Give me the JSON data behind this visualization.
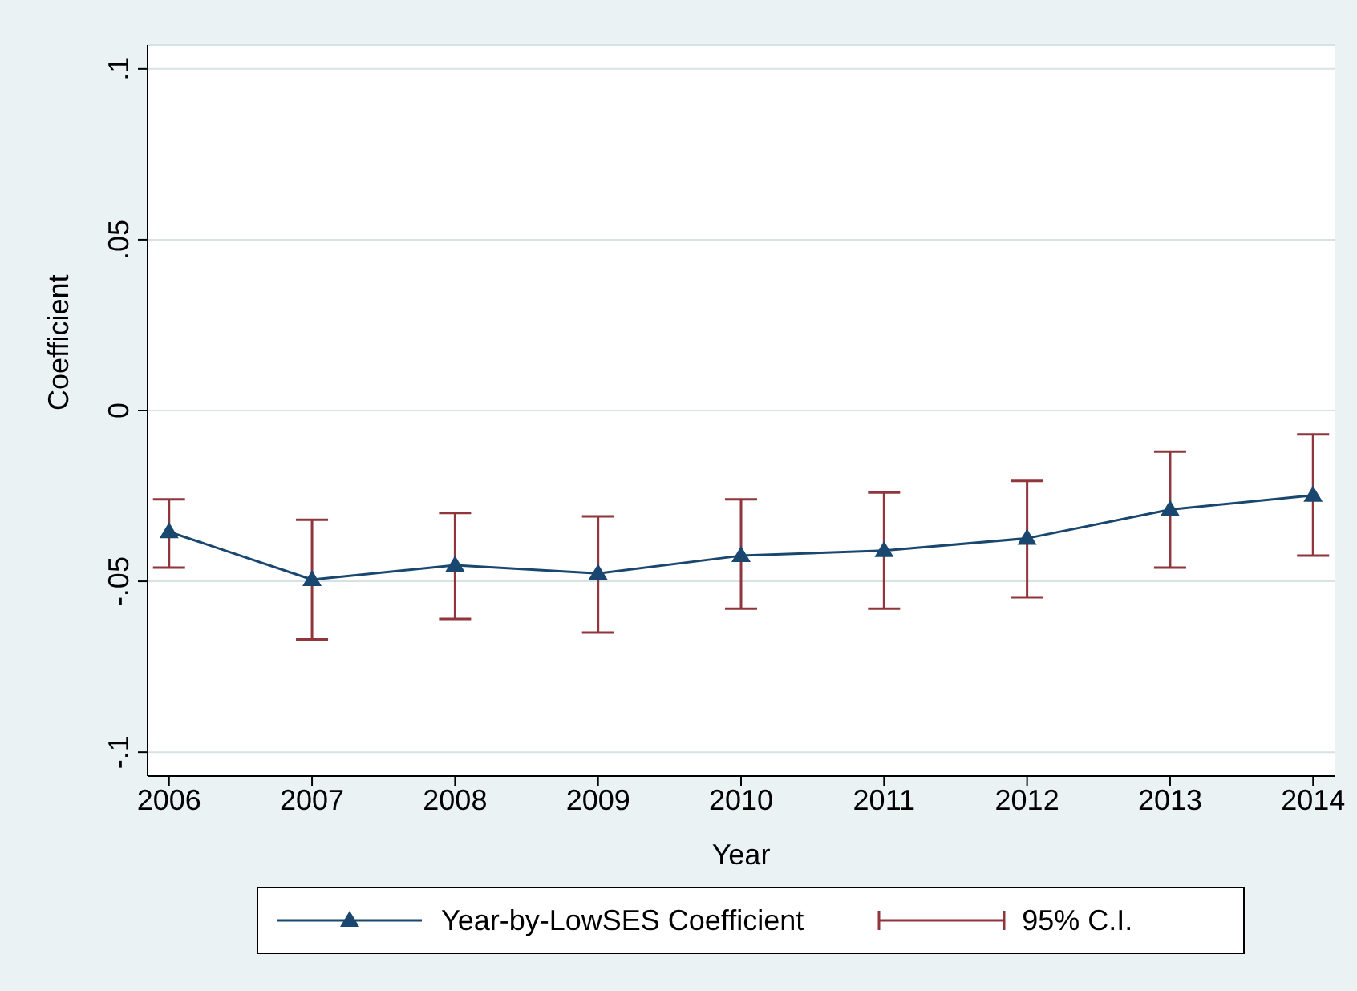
{
  "chart_data": {
    "type": "line",
    "xlabel": "Year",
    "ylabel": "Coefficient",
    "x": [
      2006,
      2007,
      2008,
      2009,
      2010,
      2011,
      2012,
      2013,
      2014
    ],
    "series": [
      {
        "name": "Year-by-LowSES Coefficient",
        "color": "#1a476f",
        "values": [
          -0.0355,
          -0.0495,
          -0.0453,
          -0.0477,
          -0.0425,
          -0.041,
          -0.0374,
          -0.029,
          -0.0248
        ],
        "errors": [
          [
            -0.046,
            -0.026
          ],
          [
            -0.067,
            -0.032
          ],
          [
            -0.061,
            -0.03
          ],
          [
            -0.065,
            -0.031
          ],
          [
            -0.058,
            -0.026
          ],
          [
            -0.058,
            -0.024
          ],
          [
            -0.0547,
            -0.0206
          ],
          [
            -0.046,
            -0.012
          ],
          [
            -0.0425,
            -0.007
          ]
        ]
      }
    ],
    "annotations": [
      "95% C.I."
    ],
    "xlim": [
      2005.85,
      2014.15
    ],
    "xticks": [
      2006,
      2007,
      2008,
      2009,
      2010,
      2011,
      2012,
      2013,
      2014
    ],
    "ylim": [
      -0.107,
      0.107
    ],
    "yticks": [
      {
        "value": -0.1,
        "label": "-.1"
      },
      {
        "value": -0.05,
        "label": "-.05"
      },
      {
        "value": 0,
        "label": "0"
      },
      {
        "value": 0.05,
        "label": ".05"
      },
      {
        "value": 0.1,
        "label": ".1"
      }
    ],
    "grid": "y",
    "legend": "bottom",
    "marker": "triangle",
    "line_style": "solid"
  }
}
